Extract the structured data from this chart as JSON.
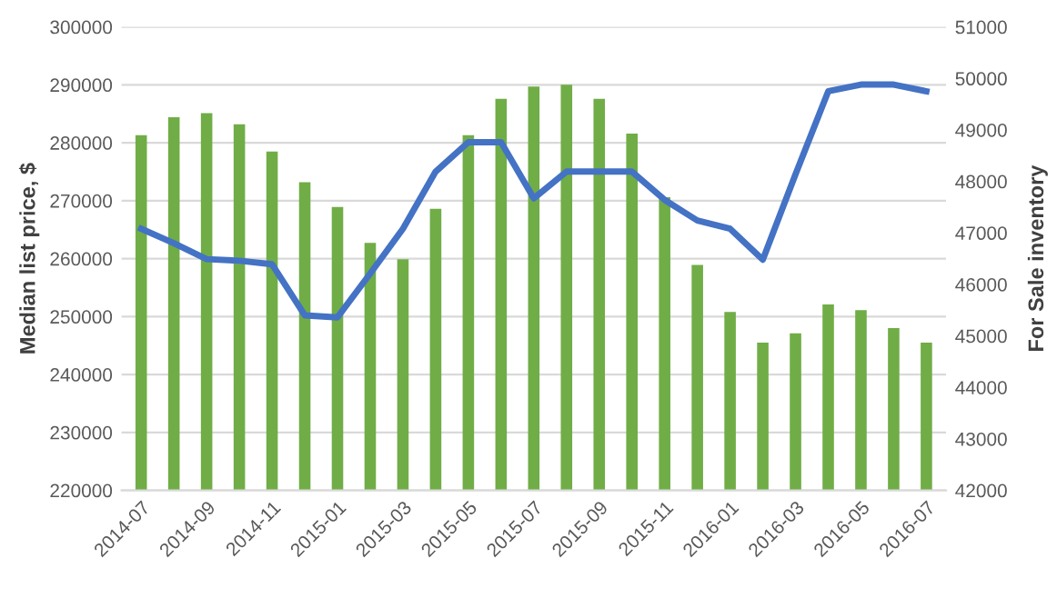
{
  "chart_data": {
    "type": "bar",
    "ylabel": "Median list price, $",
    "y2label": "For Sale inventory",
    "categories": [
      "2014-07",
      null,
      "2014-09",
      null,
      "2014-11",
      null,
      "2015-01",
      null,
      "2015-03",
      null,
      "2015-05",
      null,
      "2015-07",
      null,
      "2015-09",
      null,
      "2015-11",
      null,
      "2016-01",
      null,
      "2016-03",
      null,
      "2016-05",
      null,
      "2016-07"
    ],
    "series": [
      {
        "color": "#70ad47",
        "values": [
          281300,
          284400,
          285100,
          283200,
          278500,
          273200,
          268900,
          262700,
          259900,
          268600,
          281300,
          287600,
          289700,
          290000,
          287600,
          281600,
          270600,
          258900,
          250800,
          245500,
          247100,
          252100,
          251100,
          248000,
          245500
        ]
      },
      {
        "type": "line",
        "axis": "y2",
        "color": "#4472c4",
        "values": [
          47080,
          46800,
          46490,
          46460,
          46390,
          45400,
          45360,
          46210,
          47080,
          48190,
          48760,
          48760,
          47670,
          48190,
          48190,
          48190,
          47640,
          47240,
          47080,
          46480,
          48140,
          49750,
          49880,
          49880,
          49750
        ]
      }
    ],
    "ylim": [
      220000,
      300000
    ],
    "yticks": [
      220000,
      230000,
      240000,
      250000,
      260000,
      270000,
      280000,
      290000,
      300000
    ],
    "y2lim": [
      42000,
      51000
    ],
    "y2ticks": [
      42000,
      43000,
      44000,
      45000,
      46000,
      47000,
      48000,
      49000,
      50000,
      51000
    ],
    "grid": "y",
    "marker": "none",
    "line_style": "solid"
  }
}
